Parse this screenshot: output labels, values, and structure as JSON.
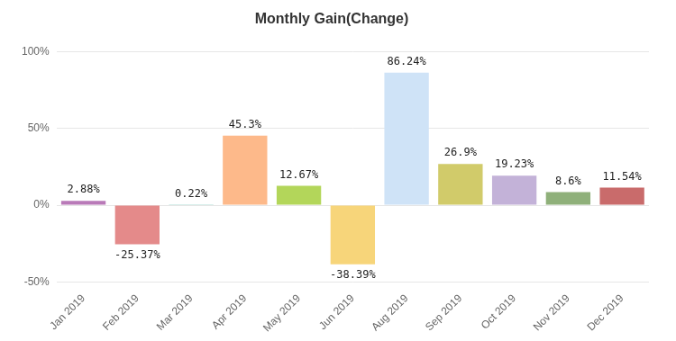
{
  "chart_data": {
    "type": "bar",
    "title": "Monthly Gain(Change)",
    "categories": [
      "Jan 2019",
      "Feb 2019",
      "Mar 2019",
      "Apr 2019",
      "May 2019",
      "Jun 2019",
      "Aug 2019",
      "Sep 2019",
      "Oct 2019",
      "Nov 2019",
      "Dec 2019"
    ],
    "values": [
      2.88,
      -25.37,
      0.22,
      45.3,
      12.67,
      -38.39,
      86.24,
      26.9,
      19.23,
      8.6,
      11.54
    ],
    "value_labels": [
      "2.88%",
      "-25.37%",
      "0.22%",
      "45.3%",
      "12.67%",
      "-38.39%",
      "86.24%",
      "26.9%",
      "19.23%",
      "8.6%",
      "11.54%"
    ],
    "colors": [
      "#b97ab8",
      "#e48a8a",
      "#5bbfb0",
      "#fdb98a",
      "#b3d65a",
      "#f7d57a",
      "#cfe3f7",
      "#d1cb6a",
      "#c3b2d8",
      "#8fb07a",
      "#c96b6b"
    ],
    "ylim": [
      -50,
      100
    ],
    "yticks": [
      {
        "value": -50,
        "label": "-50%"
      },
      {
        "value": 0,
        "label": "0%"
      },
      {
        "value": 50,
        "label": "50%"
      },
      {
        "value": 100,
        "label": "100%"
      }
    ],
    "grid": true,
    "data_labels": true
  }
}
